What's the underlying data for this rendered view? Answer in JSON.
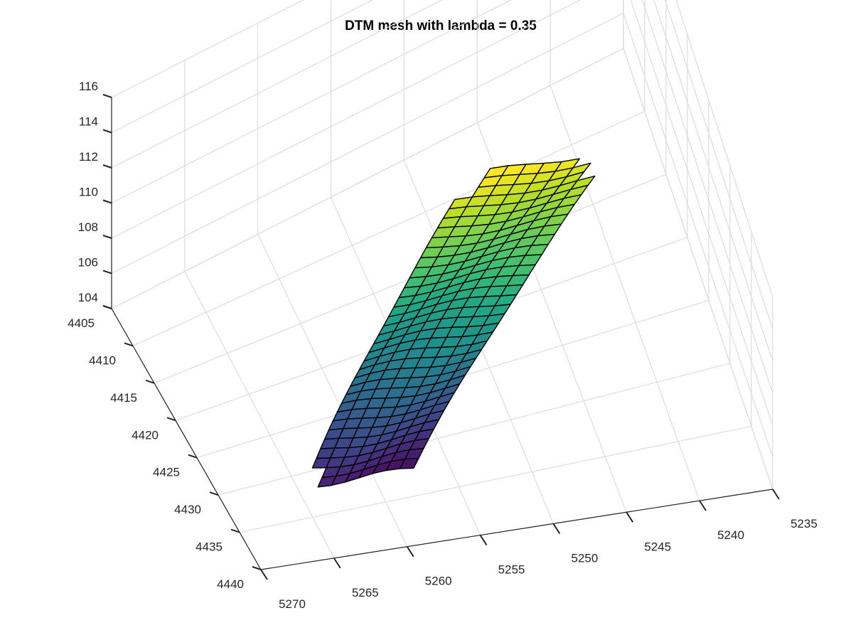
{
  "chart_data": {
    "type": "surface",
    "title": "DTM mesh with lambda = 0.35",
    "xlabel": "",
    "ylabel": "",
    "zlabel": "",
    "x_ticks": [
      "5235",
      "5240",
      "5245",
      "5250",
      "5255",
      "5260",
      "5265",
      "5270"
    ],
    "y_ticks": [
      "4405",
      "4410",
      "4415",
      "4420",
      "4425",
      "4430",
      "4435",
      "4440"
    ],
    "z_ticks": [
      "104",
      "106",
      "108",
      "110",
      "112",
      "114",
      "116"
    ],
    "xlim": [
      5235,
      5270
    ],
    "ylim": [
      4405,
      4440
    ],
    "zlim": [
      104,
      116
    ],
    "grid": true,
    "colormap": "viridis",
    "mesh": {
      "along_cells": 34,
      "across_cells": 8,
      "z_low": 104.6,
      "z_high": 113.8
    }
  }
}
